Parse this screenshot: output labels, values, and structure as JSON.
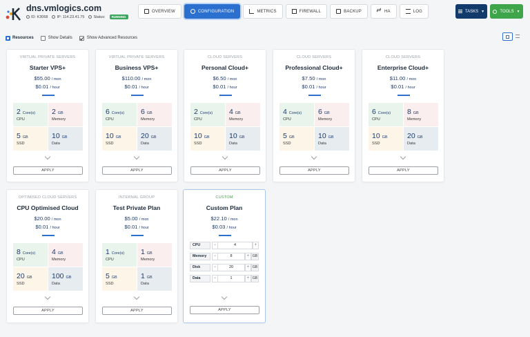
{
  "header": {
    "host": "dns.vmlogics.com",
    "id_label": "ID: K3068",
    "ip_label": "IP: 114.23.41.75",
    "status_label": "Status:",
    "status_badge": "RUNNING"
  },
  "tabs": [
    {
      "label": "OVERVIEW",
      "icon": "document-icon"
    },
    {
      "label": "CONFIGURATION",
      "icon": "gear-icon"
    },
    {
      "label": "METRICS",
      "icon": "chart-bars-icon"
    },
    {
      "label": "FIREWALL",
      "icon": "brick-wall-icon"
    },
    {
      "label": "BACKUP",
      "icon": "box-icon"
    },
    {
      "label": "HA",
      "icon": "arrows-icon"
    },
    {
      "label": "LOG",
      "icon": "lines-icon"
    }
  ],
  "actions": {
    "tasks": "TASKS",
    "tools": "TOOLS"
  },
  "options": {
    "resources": "Resources",
    "show_details": "Show Details",
    "show_advanced": "Show Advanced Resources"
  },
  "colors": {
    "accent": "#2b6fcf",
    "tasks": "#123a6b",
    "tools": "#3fa54a",
    "running": "#3aa55d"
  },
  "labels": {
    "cpu": "CPU",
    "memory": "Memory",
    "ssd": "SSD",
    "data": "Data",
    "apply": "APPLY",
    "mon": "/ mon",
    "hour": "/ hour",
    "cores": "Core(s)",
    "gb": "GB"
  },
  "plans": [
    {
      "category": "VIRTUAL PRIVATE SERVERS",
      "name": "Starter VPS+",
      "price_mon": "$55.00",
      "price_hr": "$0.01",
      "cpu": "2",
      "memory": "2",
      "ssd": "5",
      "data": "10"
    },
    {
      "category": "VIRTUAL PRIVATE SERVERS",
      "name": "Business VPS+",
      "price_mon": "$110.00",
      "price_hr": "$0.01",
      "cpu": "6",
      "memory": "6",
      "ssd": "10",
      "data": "20"
    },
    {
      "category": "CLOUD SERVERS",
      "name": "Personal Cloud+",
      "price_mon": "$6.50",
      "price_hr": "$0.01",
      "cpu": "2",
      "memory": "4",
      "ssd": "10",
      "data": "10"
    },
    {
      "category": "CLOUD SERVERS",
      "name": "Professional Cloud+",
      "price_mon": "$7.50",
      "price_hr": "$0.01",
      "cpu": "4",
      "memory": "6",
      "ssd": "5",
      "data": "10"
    },
    {
      "category": "CLOUD SERVERS",
      "name": "Enterprise Cloud+",
      "price_mon": "$11.00",
      "price_hr": "$0.01",
      "cpu": "6",
      "memory": "8",
      "ssd": "10",
      "data": "20"
    },
    {
      "category": "OPTIMISED CLOUD SERVERS",
      "name": "CPU Optimised Cloud",
      "price_mon": "$20.00",
      "price_hr": "$0.01",
      "cpu": "8",
      "memory": "4",
      "ssd": "20",
      "data": "100"
    },
    {
      "category": "INTERNAL GROUP",
      "name": "Test Private Plan",
      "price_mon": "$5.00",
      "price_hr": "$0.01",
      "cpu": "1",
      "memory": "1",
      "ssd": "5",
      "data": "1"
    }
  ],
  "custom": {
    "category": "CUSTOM",
    "name": "Custom Plan",
    "price_mon": "$22.10",
    "price_hr": "$0.03",
    "rows": [
      {
        "label": "CPU",
        "value": "4",
        "unit": ""
      },
      {
        "label": "Memory",
        "value": "8",
        "unit": "GB"
      },
      {
        "label": "Disk",
        "value": "20",
        "unit": "GB"
      },
      {
        "label": "Data",
        "value": "1",
        "unit": "GB"
      }
    ],
    "apply": "APPLY"
  }
}
